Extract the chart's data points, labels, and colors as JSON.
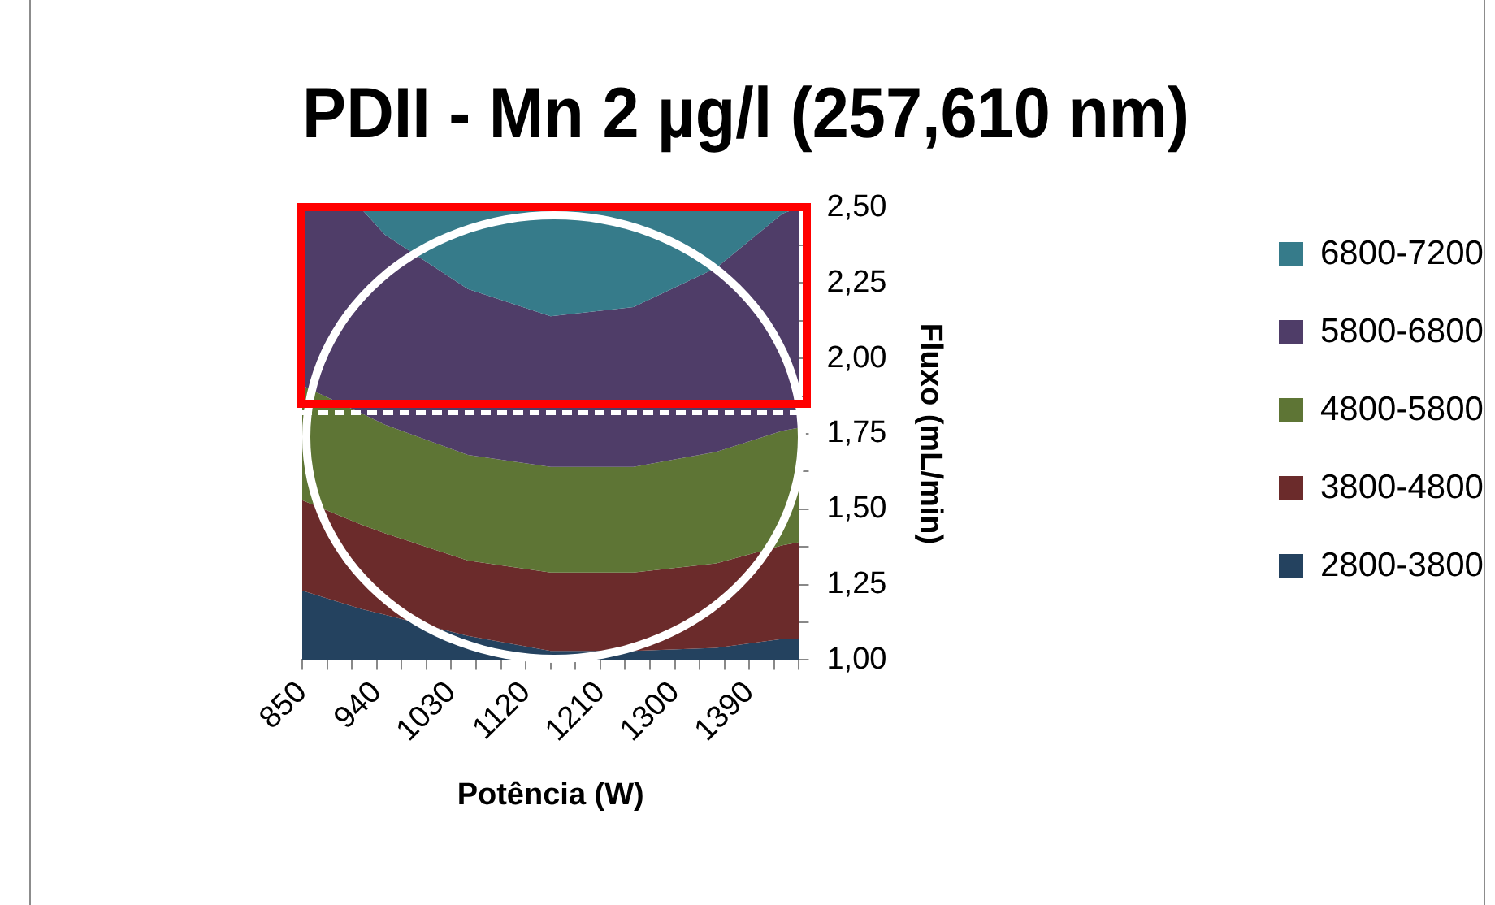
{
  "chart_data": {
    "type": "area",
    "title": "PDII - Mn 2 µg/l (257,610 nm)",
    "xlabel": "Potência (W)",
    "ylabel": "Fluxo (mL/min)",
    "x": [
      850,
      920,
      950,
      1050,
      1150,
      1250,
      1350,
      1430,
      1450
    ],
    "series": [
      {
        "name": "6800-7200",
        "color": "#367b8a",
        "values": [
          2.5,
          2.5,
          2.5,
          2.5,
          2.5,
          2.5,
          2.5,
          2.5,
          2.5
        ]
      },
      {
        "name": "5800-6800",
        "color": "#4f3d68",
        "values": [
          2.5,
          2.5,
          2.41,
          2.23,
          2.14,
          2.17,
          2.3,
          2.48,
          2.5
        ]
      },
      {
        "name": "4800-5800",
        "color": "#5e7535",
        "values": [
          1.91,
          1.82,
          1.78,
          1.68,
          1.64,
          1.64,
          1.69,
          1.76,
          1.77
        ]
      },
      {
        "name": "3800-4800",
        "color": "#6b2b2b",
        "values": [
          1.53,
          1.45,
          1.42,
          1.33,
          1.29,
          1.29,
          1.32,
          1.38,
          1.39
        ]
      },
      {
        "name": "2800-3800",
        "color": "#24425f",
        "values": [
          1.23,
          1.17,
          1.15,
          1.08,
          1.03,
          1.03,
          1.04,
          1.07,
          1.07
        ]
      }
    ],
    "xlim": [
      850,
      1450
    ],
    "xticks": [
      850,
      {
        "value": 880,
        "label": null
      },
      {
        "value": 910,
        "label": null
      },
      940,
      {
        "value": 970,
        "label": null
      },
      {
        "value": 1000,
        "label": null
      },
      1030,
      {
        "value": 1060,
        "label": null
      },
      {
        "value": 1090,
        "label": null
      },
      1120,
      {
        "value": 1150,
        "label": null
      },
      {
        "value": 1180,
        "label": null
      },
      1210,
      {
        "value": 1240,
        "label": null
      },
      {
        "value": 1270,
        "label": null
      },
      1300,
      {
        "value": 1330,
        "label": null
      },
      {
        "value": 1360,
        "label": null
      },
      1390,
      {
        "value": 1420,
        "label": null
      },
      {
        "value": 1450,
        "label": null
      }
    ],
    "ylim": [
      1,
      2.5
    ],
    "yticks": [
      {
        "value": 1,
        "label": "1,00"
      },
      {
        "value": 1.125,
        "label": null
      },
      {
        "value": 1.25,
        "label": "1,25"
      },
      {
        "value": 1.375,
        "label": null
      },
      {
        "value": 1.5,
        "label": "1,50"
      },
      {
        "value": 1.625,
        "label": null
      },
      {
        "value": 1.75,
        "label": "1,75"
      },
      {
        "value": 1.875,
        "label": null
      },
      {
        "value": 2,
        "label": "2,00"
      },
      {
        "value": 2.125,
        "label": null
      },
      {
        "value": 2.25,
        "label": "2,25"
      },
      {
        "value": 2.375,
        "label": null
      },
      {
        "value": 2.5,
        "label": "2,50"
      }
    ],
    "ref_lines": [
      {
        "axis": "y",
        "value": 1.82,
        "color": "#ffffff",
        "line_style": "dashed"
      }
    ],
    "grid": false,
    "legend": "right",
    "marker": "none"
  }
}
